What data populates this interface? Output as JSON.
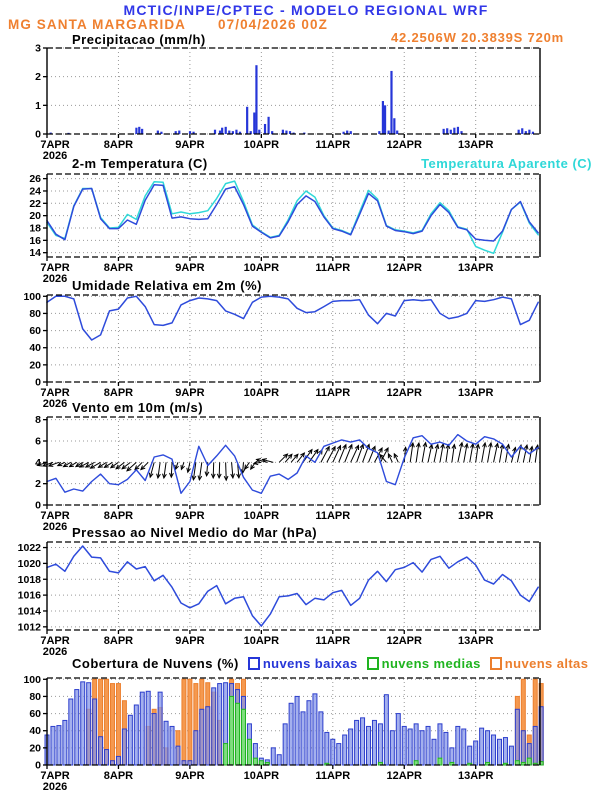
{
  "header": {
    "title": "MCTIC/INPE/CPTEC - MODELO REGIONAL WRF",
    "station": "MG SANTA MARGARIDA",
    "run_datetime": "07/04/2026 00Z",
    "coordinates": "42.2506W 20.3839S 720m"
  },
  "colors": {
    "header_blue": "#3137e8",
    "orange_text": "#ef8030",
    "cyan": "#2fd8d8",
    "line_blue": "#2e4bdb",
    "precip_bar": "#2636d8",
    "cloud_low_fill": "#8596e8",
    "cloud_low_stroke": "#2c3ecc",
    "cloud_mid_fill": "#7fdd7f",
    "cloud_mid_stroke": "#1fb41f",
    "cloud_high_fill": "#f5994f",
    "cloud_high_stroke": "#ec7f2e",
    "grid": "#999999",
    "axis": "#000000"
  },
  "x_axis": {
    "tick_labels": [
      "7APR",
      "8APR",
      "9APR",
      "10APR",
      "11APR",
      "12APR",
      "13APR"
    ],
    "year": "2026",
    "days_span": 6.9
  },
  "chart_data": [
    {
      "type": "bar",
      "title": "Precipitacao (mm/h)",
      "ylabel": "mm/h",
      "ylim": [
        0,
        3
      ],
      "yticks": [
        0,
        1,
        2,
        3
      ],
      "points": [
        [
          0.05,
          0.05
        ],
        [
          0.3,
          0.04
        ],
        [
          1.25,
          0.22
        ],
        [
          1.29,
          0.25
        ],
        [
          1.33,
          0.18
        ],
        [
          1.55,
          0.12
        ],
        [
          1.6,
          0.08
        ],
        [
          1.8,
          0.1
        ],
        [
          1.85,
          0.12
        ],
        [
          2.0,
          0.1
        ],
        [
          2.05,
          0.08
        ],
        [
          2.35,
          0.15
        ],
        [
          2.42,
          0.12
        ],
        [
          2.45,
          0.22
        ],
        [
          2.5,
          0.25
        ],
        [
          2.55,
          0.12
        ],
        [
          2.6,
          0.1
        ],
        [
          2.65,
          0.15
        ],
        [
          2.7,
          0.08
        ],
        [
          2.8,
          0.95
        ],
        [
          2.85,
          0.1
        ],
        [
          2.9,
          0.75
        ],
        [
          2.93,
          2.4
        ],
        [
          2.97,
          0.15
        ],
        [
          3.05,
          0.35
        ],
        [
          3.1,
          0.6
        ],
        [
          3.15,
          0.1
        ],
        [
          3.3,
          0.15
        ],
        [
          3.35,
          0.12
        ],
        [
          3.4,
          0.1
        ],
        [
          3.45,
          0.05
        ],
        [
          3.6,
          0.05
        ],
        [
          4.15,
          0.08
        ],
        [
          4.2,
          0.12
        ],
        [
          4.25,
          0.1
        ],
        [
          4.65,
          0.1
        ],
        [
          4.7,
          1.15
        ],
        [
          4.73,
          1.0
        ],
        [
          4.78,
          0.12
        ],
        [
          4.82,
          2.2
        ],
        [
          4.86,
          0.55
        ],
        [
          4.9,
          0.12
        ],
        [
          5.55,
          0.18
        ],
        [
          5.6,
          0.2
        ],
        [
          5.65,
          0.15
        ],
        [
          5.7,
          0.22
        ],
        [
          5.75,
          0.25
        ],
        [
          5.8,
          0.1
        ],
        [
          6.6,
          0.15
        ],
        [
          6.65,
          0.2
        ],
        [
          6.7,
          0.1
        ],
        [
          6.75,
          0.15
        ],
        [
          6.8,
          0.08
        ]
      ]
    },
    {
      "type": "line",
      "title": "2-m Temperatura (C)",
      "ylim": [
        14,
        26
      ],
      "yticks": [
        14,
        16,
        18,
        20,
        22,
        24,
        26
      ],
      "x_step_days": 0.125,
      "series": [
        {
          "name": "2-m Temperatura (C)",
          "values": [
            19.2,
            17.0,
            16.1,
            21.5,
            24.3,
            24.4,
            19.5,
            17.9,
            17.9,
            19.3,
            18.6,
            22.5,
            25.0,
            24.9,
            19.6,
            19.8,
            19.5,
            19.4,
            19.5,
            21.8,
            24.3,
            24.7,
            21.8,
            18.3,
            17.3,
            16.4,
            16.7,
            19.0,
            21.8,
            23.2,
            22.3,
            19.8,
            17.9,
            17.5,
            16.9,
            20.2,
            23.6,
            22.4,
            18.3,
            17.6,
            17.4,
            17.1,
            17.5,
            20.0,
            21.8,
            20.5,
            18.1,
            17.7,
            16.2,
            16.0,
            15.9,
            17.5,
            21.0,
            22.3,
            19.0,
            17.2
          ]
        },
        {
          "name": "Temperatura Aparente (C)",
          "values": [
            18.9,
            16.8,
            16.3,
            21.6,
            24.4,
            24.4,
            19.7,
            18.0,
            18.1,
            20.2,
            19.4,
            23.2,
            25.5,
            25.4,
            20.3,
            20.6,
            20.3,
            20.5,
            20.8,
            22.8,
            25.2,
            25.6,
            22.3,
            18.5,
            17.4,
            16.5,
            16.8,
            19.3,
            22.4,
            24.0,
            23.0,
            20.0,
            18.0,
            17.6,
            17.0,
            20.6,
            24.1,
            22.7,
            18.4,
            17.7,
            17.5,
            17.2,
            17.6,
            20.3,
            22.1,
            20.8,
            18.2,
            17.8,
            15.0,
            14.4,
            13.9,
            17.3,
            21.0,
            22.2,
            18.8,
            16.9
          ]
        }
      ]
    },
    {
      "type": "line",
      "title": "Umidade Relativa em 2m (%)",
      "ylim": [
        0,
        100
      ],
      "yticks": [
        0,
        20,
        40,
        60,
        80,
        100
      ],
      "x_step_days": 0.125,
      "series": [
        {
          "name": "Umidade Relativa em 2m (%)",
          "values": [
            93,
            100,
            100,
            97,
            62,
            49,
            55,
            83,
            85,
            98,
            100,
            88,
            67,
            66,
            69,
            90,
            95,
            98,
            97,
            95,
            83,
            79,
            74,
            93,
            99,
            100,
            99,
            97,
            86,
            81,
            82,
            88,
            94,
            95,
            95,
            96,
            78,
            68,
            80,
            77,
            95,
            96,
            95,
            96,
            80,
            74,
            76,
            80,
            95,
            94,
            96,
            99,
            97,
            67,
            72,
            93
          ]
        }
      ]
    },
    {
      "type": "line_vectors",
      "title": "Vento em 10m (m/s)",
      "ylim": [
        0,
        8
      ],
      "yticks": [
        0,
        2,
        4,
        6,
        8
      ],
      "x_step_days": 0.125,
      "series": [
        {
          "name": "Velocidade do vento (m/s)",
          "values": [
            2.2,
            2.5,
            1.2,
            1.5,
            1.3,
            2.2,
            2.9,
            2.0,
            1.9,
            2.4,
            3.3,
            2.3,
            4.5,
            4.7,
            4.3,
            1.1,
            2.2,
            5.5,
            3.7,
            4.6,
            5.6,
            4.6,
            2.6,
            1.4,
            1.1,
            2.7,
            2.9,
            2.4,
            3.0,
            4.6,
            4.0,
            5.5,
            5.8,
            6.1,
            5.9,
            6.1,
            5.3,
            4.9,
            2.2,
            1.9,
            4.4,
            6.3,
            6.5,
            5.7,
            5.9,
            5.6,
            6.6,
            6.0,
            5.7,
            6.4,
            6.2,
            5.7,
            4.5,
            5.5,
            4.8,
            5.4
          ]
        }
      ],
      "vectors": {
        "anchor_value": 4,
        "directions_deg_toward": [
          252,
          250,
          245,
          240,
          238,
          242,
          240,
          238,
          235,
          232,
          228,
          225,
          195,
          188,
          183,
          200,
          192,
          188,
          185,
          182,
          178,
          175,
          185,
          215,
          262,
          285,
          45,
          40,
          38,
          35,
          30,
          28,
          25,
          22,
          25,
          20,
          22,
          28,
          320,
          335,
          5,
          8,
          10,
          12,
          10,
          8,
          12,
          10,
          8,
          10,
          12,
          10,
          15,
          12,
          10,
          8
        ]
      }
    },
    {
      "type": "line",
      "title": "Pressao ao Nivel Medio do Mar (hPa)",
      "ylim": [
        1012,
        1022
      ],
      "yticks": [
        1012,
        1014,
        1016,
        1018,
        1020,
        1022
      ],
      "x_step_days": 0.125,
      "series": [
        {
          "name": "Pressao ao nivel medio do mar (hPa)",
          "values": [
            1019.5,
            1019.9,
            1019.0,
            1020.9,
            1022.2,
            1020.8,
            1020.7,
            1019.0,
            1018.8,
            1020.2,
            1019.3,
            1019.6,
            1017.8,
            1018.5,
            1017.0,
            1015.0,
            1014.4,
            1014.9,
            1016.5,
            1017.2,
            1014.9,
            1015.6,
            1015.8,
            1013.4,
            1012.1,
            1013.6,
            1015.8,
            1015.9,
            1016.2,
            1014.8,
            1015.6,
            1015.4,
            1016.3,
            1016.6,
            1014.7,
            1015.6,
            1017.9,
            1019.0,
            1017.7,
            1019.2,
            1019.5,
            1020.1,
            1018.9,
            1020.5,
            1020.9,
            1019.4,
            1020.2,
            1020.8,
            1019.8,
            1017.9,
            1017.4,
            1018.6,
            1017.8,
            1016.0,
            1015.2,
            1017.0
          ]
        }
      ]
    },
    {
      "type": "bar_multi",
      "title": "Cobertura de Nuvens (%)",
      "ylim": [
        0,
        100
      ],
      "yticks": [
        0,
        20,
        40,
        60,
        80,
        100
      ],
      "x_step_days": 0.08333,
      "series": [
        {
          "name": "nuvens baixas",
          "values": [
            35,
            45,
            46,
            52,
            77,
            88,
            97,
            96,
            77,
            33,
            18,
            5,
            10,
            42,
            58,
            70,
            85,
            86,
            60,
            85,
            51,
            45,
            22,
            5,
            5,
            40,
            65,
            68,
            90,
            95,
            96,
            95,
            88,
            80,
            48,
            25,
            8,
            6,
            20,
            12,
            48,
            72,
            80,
            62,
            75,
            83,
            62,
            38,
            30,
            25,
            35,
            42,
            52,
            55,
            45,
            52,
            48,
            82,
            40,
            60,
            45,
            42,
            48,
            40,
            45,
            30,
            48,
            38,
            20,
            45,
            42,
            22,
            28,
            43,
            40,
            35,
            30,
            32,
            22,
            65,
            40,
            25,
            45,
            68
          ]
        },
        {
          "name": "nuvens medias",
          "values": [
            0,
            0,
            0,
            0,
            0,
            0,
            0,
            0,
            0,
            0,
            0,
            0,
            0,
            0,
            0,
            0,
            0,
            0,
            0,
            0,
            0,
            0,
            0,
            0,
            0,
            0,
            0,
            0,
            0,
            0,
            25,
            80,
            72,
            65,
            30,
            8,
            5,
            3,
            0,
            0,
            0,
            0,
            0,
            0,
            0,
            0,
            0,
            2,
            0,
            0,
            0,
            0,
            0,
            0,
            0,
            0,
            3,
            0,
            0,
            0,
            0,
            0,
            5,
            0,
            0,
            0,
            8,
            0,
            3,
            0,
            0,
            2,
            0,
            0,
            3,
            0,
            0,
            2,
            0,
            5,
            3,
            8,
            2,
            4
          ]
        },
        {
          "name": "nuvens altas",
          "values": [
            0,
            0,
            0,
            0,
            0,
            0,
            0,
            65,
            100,
            100,
            100,
            95,
            95,
            75,
            0,
            0,
            0,
            45,
            65,
            67,
            20,
            0,
            40,
            100,
            100,
            95,
            100,
            96,
            85,
            52,
            0,
            100,
            95,
            100,
            0,
            0,
            0,
            0,
            0,
            0,
            0,
            0,
            0,
            0,
            0,
            0,
            0,
            0,
            0,
            0,
            0,
            0,
            0,
            0,
            0,
            0,
            0,
            0,
            0,
            0,
            0,
            0,
            0,
            0,
            0,
            0,
            0,
            0,
            0,
            0,
            0,
            0,
            0,
            0,
            0,
            0,
            0,
            0,
            0,
            80,
            100,
            35,
            100,
            95
          ]
        }
      ]
    }
  ]
}
